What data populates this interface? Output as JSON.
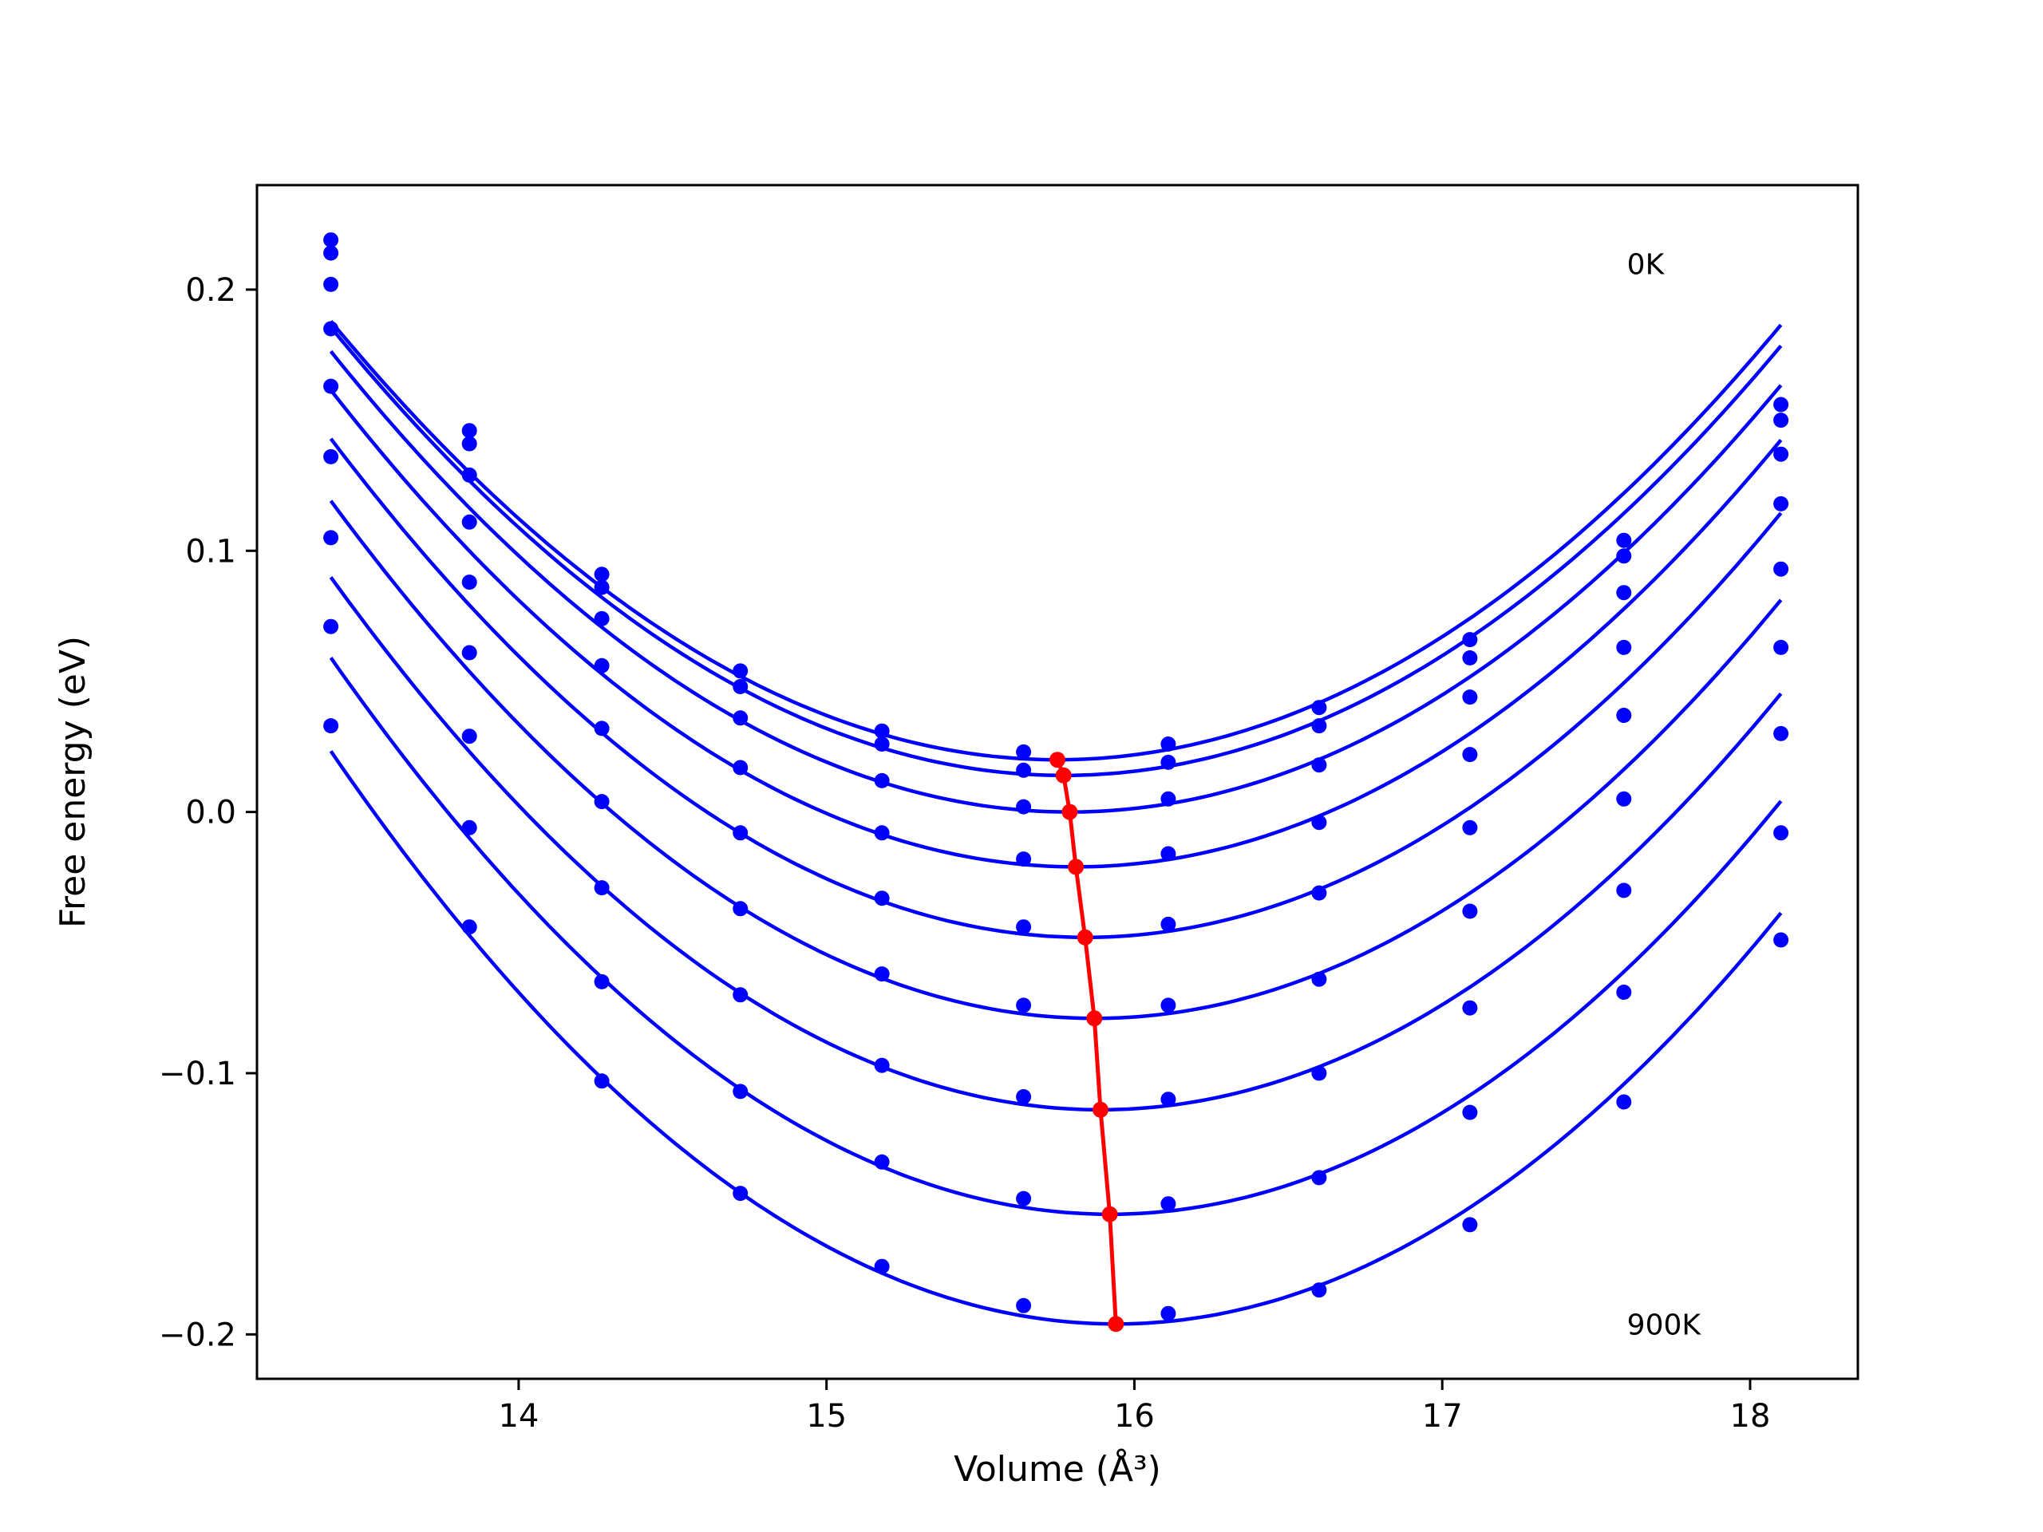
{
  "chart_data": {
    "type": "line",
    "title": "",
    "xlabel": "Volume (Å³)",
    "ylabel": "Free energy (eV)",
    "xlim": [
      13.15,
      18.35
    ],
    "ylim": [
      -0.217,
      0.24
    ],
    "xticks": [
      14,
      15,
      16,
      17,
      18
    ],
    "xtick_labels": [
      "14",
      "15",
      "16",
      "17",
      "18"
    ],
    "yticks": [
      -0.2,
      -0.1,
      0.0,
      0.1,
      0.2
    ],
    "ytick_labels": [
      "−0.2",
      "−0.1",
      "0.0",
      "0.1",
      "0.2"
    ],
    "grid": false,
    "legend": "none",
    "annotations": [
      {
        "text": "0K",
        "x": 17.6,
        "y": 0.206
      },
      {
        "text": "900K",
        "x": 17.6,
        "y": -0.2
      }
    ],
    "colors": {
      "curves": "#0000ff",
      "minima": "#ff0000"
    },
    "x_points": [
      13.39,
      13.84,
      14.27,
      14.72,
      15.18,
      15.64,
      16.11,
      16.6,
      17.09,
      17.59,
      18.1
    ],
    "series": [
      {
        "values": [
          0.219,
          0.146,
          0.091,
          0.054,
          0.031,
          0.023,
          0.026,
          0.04,
          0.066,
          0.104,
          0.156
        ],
        "min": [
          15.75,
          0.02
        ]
      },
      {
        "values": [
          0.214,
          0.141,
          0.086,
          0.048,
          0.026,
          0.016,
          0.019,
          0.033,
          0.059,
          0.098,
          0.15
        ],
        "min": [
          15.77,
          0.014
        ]
      },
      {
        "values": [
          0.202,
          0.129,
          0.074,
          0.036,
          0.012,
          0.002,
          0.005,
          0.018,
          0.044,
          0.084,
          0.137
        ],
        "min": [
          15.79,
          0.0
        ]
      },
      {
        "values": [
          0.185,
          0.111,
          0.056,
          0.017,
          -0.008,
          -0.018,
          -0.016,
          -0.004,
          0.022,
          0.063,
          0.118
        ],
        "min": [
          15.81,
          -0.021
        ]
      },
      {
        "values": [
          0.163,
          0.088,
          0.032,
          -0.008,
          -0.033,
          -0.044,
          -0.043,
          -0.031,
          -0.006,
          0.037,
          0.093
        ],
        "min": [
          15.84,
          -0.048
        ]
      },
      {
        "values": [
          0.136,
          0.061,
          0.004,
          -0.037,
          -0.062,
          -0.074,
          -0.074,
          -0.064,
          -0.038,
          0.005,
          0.063
        ],
        "min": [
          15.87,
          -0.079
        ]
      },
      {
        "values": [
          0.105,
          0.029,
          -0.029,
          -0.07,
          -0.097,
          -0.109,
          -0.11,
          -0.1,
          -0.075,
          -0.03,
          0.03
        ],
        "min": [
          15.89,
          -0.114
        ]
      },
      {
        "values": [
          0.071,
          -0.006,
          -0.065,
          -0.107,
          -0.134,
          -0.148,
          -0.15,
          -0.14,
          -0.115,
          -0.069,
          -0.008
        ],
        "min": [
          15.92,
          -0.154
        ]
      },
      {
        "values": [
          0.033,
          -0.044,
          -0.103,
          -0.146,
          -0.174,
          -0.189,
          -0.192,
          -0.183,
          -0.158,
          -0.111,
          -0.049
        ],
        "min": [
          15.94,
          -0.196
        ]
      }
    ]
  }
}
